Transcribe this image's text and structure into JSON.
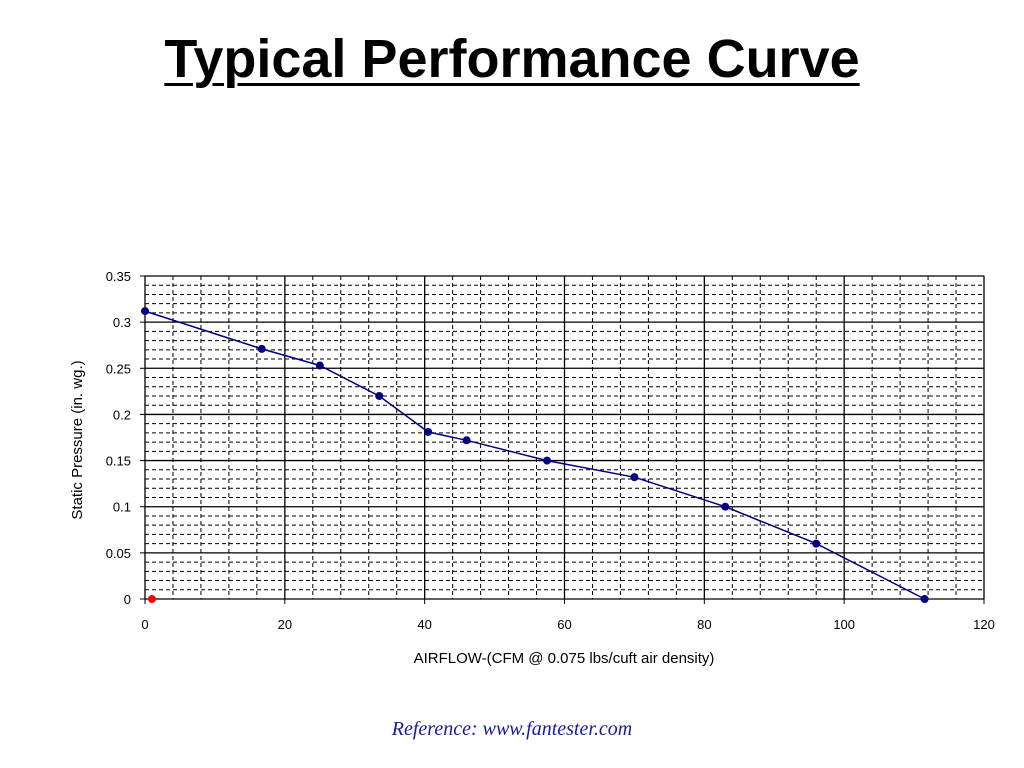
{
  "slide": {
    "title": "Typical Performance Curve",
    "reference": "Reference: www.fantester.com"
  },
  "chart_data": {
    "type": "line",
    "title": "",
    "xlabel": "AIRFLOW-(CFM @ 0.075 lbs/cuft air density)",
    "ylabel": "Static Pressure (in. wg.)",
    "xlim": [
      0,
      120
    ],
    "ylim": [
      0,
      0.35
    ],
    "x_ticks": [
      0,
      20,
      40,
      60,
      80,
      100,
      120
    ],
    "y_ticks": [
      0,
      0.05,
      0.1,
      0.15,
      0.2,
      0.25,
      0.3,
      0.35
    ],
    "x_tick_labels": [
      "0",
      "20",
      "40",
      "60",
      "80",
      "100",
      "120"
    ],
    "y_tick_labels": [
      "0",
      "0.05",
      "0.1",
      "0.15",
      "0.2",
      "0.25",
      "0.3",
      "0.35"
    ],
    "grid": true,
    "series": [
      {
        "x": [
          0,
          16.7,
          25,
          33.5,
          40.5,
          46,
          57.5,
          70,
          83,
          96,
          111.5
        ],
        "y": [
          0.312,
          0.271,
          0.253,
          0.22,
          0.181,
          0.172,
          0.15,
          0.132,
          0.1,
          0.06,
          0
        ],
        "color": "#000080"
      },
      {
        "x": [
          1
        ],
        "y": [
          0
        ],
        "color": "#ff0000"
      }
    ]
  }
}
